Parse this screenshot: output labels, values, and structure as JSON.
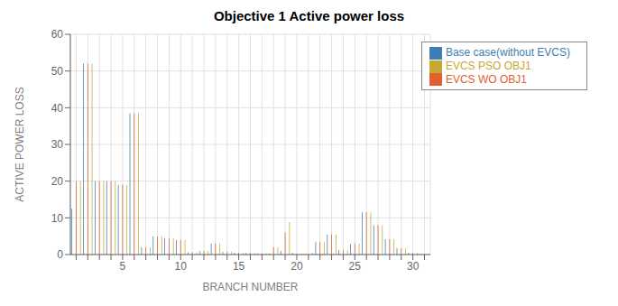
{
  "chart_data": {
    "type": "bar",
    "title": "Objective 1 Active power loss",
    "xlabel": "BRANCH NUMBER",
    "ylabel": "ACTIVE POWER LOSS",
    "categories": [
      null,
      null,
      null,
      null,
      5,
      null,
      null,
      null,
      null,
      10,
      null,
      null,
      null,
      null,
      15,
      null,
      null,
      null,
      null,
      20,
      null,
      null,
      null,
      null,
      25,
      null,
      null,
      null,
      null,
      30,
      null
    ],
    "series": [
      {
        "name": "Base case(without EVCS)",
        "color": "#3d7eb5",
        "values": [
          12.5,
          52.0,
          20.0,
          20.0,
          19.0,
          38.5,
          2.0,
          5.0,
          4.5,
          4.0,
          0.6,
          1.0,
          3.0,
          0.8,
          0.5,
          0.4,
          0.3,
          0.3,
          1.0,
          0.5,
          0.1,
          3.5,
          5.5,
          1.2,
          2.8,
          11.5,
          8.0,
          4.2,
          1.7,
          0.5,
          0.1
        ]
      },
      {
        "name": "EVCS WO OBJ1",
        "color": "#e06030",
        "values": [
          20.0,
          52.0,
          20.0,
          20.0,
          19.0,
          38.5,
          2.0,
          5.0,
          4.5,
          4.0,
          0.6,
          1.0,
          3.0,
          0.8,
          0.5,
          0.4,
          0.3,
          2.0,
          6.0,
          0.1,
          0.1,
          3.5,
          5.5,
          1.2,
          3.0,
          11.5,
          8.0,
          4.2,
          1.7,
          0.5,
          0.1
        ]
      },
      {
        "name": "EVCS PSO OBJ1",
        "color": "#c8a832",
        "values": [
          20.0,
          52.0,
          20.0,
          20.0,
          19.0,
          38.5,
          2.0,
          5.0,
          4.5,
          4.0,
          0.6,
          1.0,
          3.0,
          0.8,
          0.5,
          0.4,
          0.3,
          2.0,
          8.8,
          0.1,
          0.5,
          3.5,
          5.5,
          1.2,
          3.0,
          11.5,
          8.0,
          4.2,
          1.7,
          0.5,
          0.1
        ]
      }
    ],
    "ylim": [
      0,
      60
    ],
    "yticks": [
      0,
      10,
      20,
      30,
      40,
      50,
      60
    ],
    "grid": true,
    "legend": "upper right"
  }
}
